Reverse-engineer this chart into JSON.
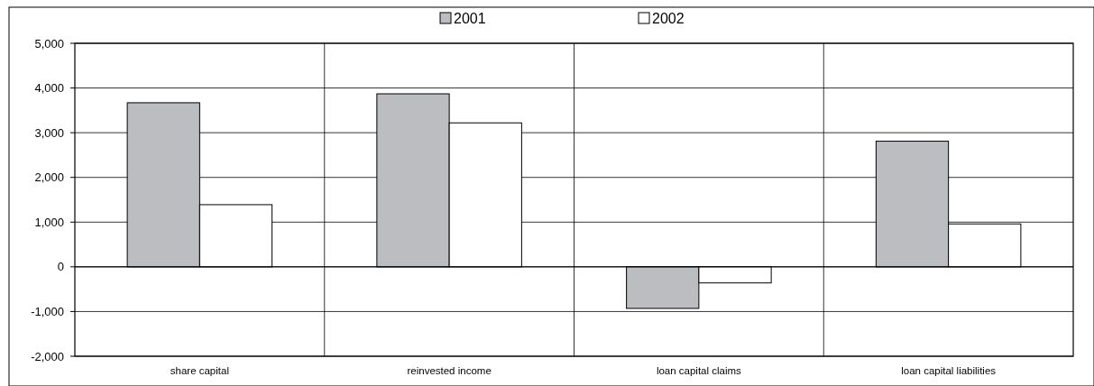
{
  "chart_data": {
    "type": "bar",
    "categories": [
      "share capital",
      "reinvested income",
      "loan capital claims",
      "loan capital liabilities"
    ],
    "series": [
      {
        "name": "2001",
        "color": "#bcbdc1",
        "values": [
          3670,
          3870,
          -930,
          2810
        ]
      },
      {
        "name": "2002",
        "color": "#ffffff",
        "values": [
          1390,
          3220,
          -360,
          960
        ]
      }
    ],
    "ylim": [
      -2000,
      5000
    ],
    "yticks": [
      {
        "value": -2000,
        "label": "-2,000"
      },
      {
        "value": -1000,
        "label": "-1,000"
      },
      0,
      {
        "value": 1000,
        "label": "1,000"
      },
      {
        "value": 2000,
        "label": "2,000"
      },
      {
        "value": 3000,
        "label": "3,000"
      },
      {
        "value": 4000,
        "label": "4,000"
      },
      {
        "value": 5000,
        "label": "5,000"
      }
    ],
    "grid": true,
    "legend": "top"
  }
}
